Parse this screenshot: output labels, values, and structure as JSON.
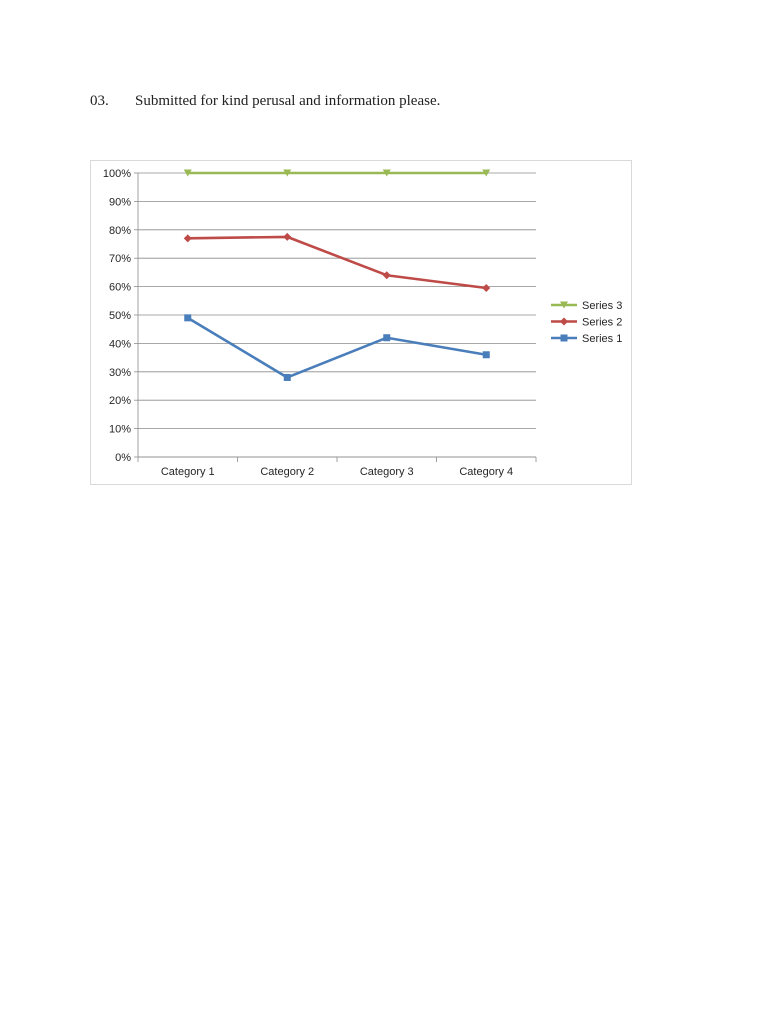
{
  "document": {
    "item_number": "03.",
    "item_text": "Submitted for kind perusal and information please."
  },
  "chart_data": {
    "type": "line",
    "title": "",
    "xlabel": "",
    "ylabel": "",
    "categories": [
      "Category 1",
      "Category 2",
      "Category 3",
      "Category 4"
    ],
    "ylim": [
      0,
      1
    ],
    "y_ticks": [
      0,
      0.1,
      0.2,
      0.3,
      0.4,
      0.5,
      0.6,
      0.7,
      0.8,
      0.9,
      1.0
    ],
    "y_tick_labels": [
      "0%",
      "10%",
      "20%",
      "30%",
      "40%",
      "50%",
      "60%",
      "70%",
      "80%",
      "90%",
      "100%"
    ],
    "grid": true,
    "legend_position": "right",
    "series": [
      {
        "name": "Series 1",
        "values": [
          0.49,
          0.28,
          0.42,
          0.36
        ],
        "color": "#4a7ebb",
        "marker": "square"
      },
      {
        "name": "Series 2",
        "values": [
          0.77,
          0.775,
          0.64,
          0.595
        ],
        "color": "#be4b48",
        "marker": "diamond"
      },
      {
        "name": "Series 3",
        "values": [
          1.0,
          1.0,
          1.0,
          1.0
        ],
        "color": "#98b954",
        "marker": "triangle-down"
      }
    ],
    "legend_order": [
      "Series 3",
      "Series 2",
      "Series 1"
    ]
  }
}
